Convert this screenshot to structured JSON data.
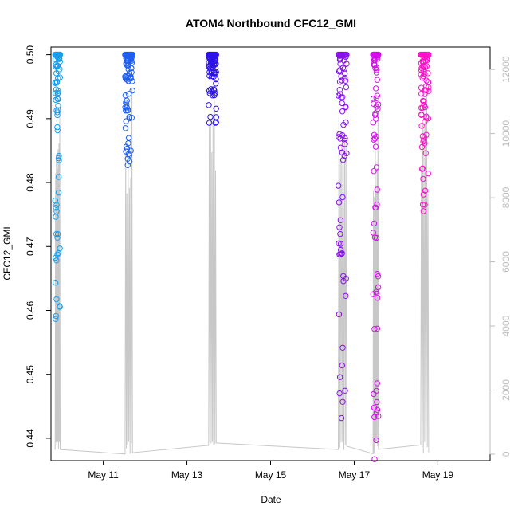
{
  "chart_data": {
    "type": "scatter",
    "title": "ATOM4 Northbound CFC12_GMI",
    "xlabel": "Date",
    "ylabel": "CFC12_GMI",
    "x_ticks": [
      "May 11",
      "May 13",
      "May 15",
      "May 17",
      "May 19"
    ],
    "y_ticks": [
      "0.44",
      "0.45",
      "0.46",
      "0.47",
      "0.48",
      "0.49",
      "0.50"
    ],
    "y2_ticks": [
      "0",
      "2000",
      "4000",
      "6000",
      "8000",
      "10000",
      "12000"
    ],
    "xlim": [
      9.75,
      20.25
    ],
    "ylim": [
      0.4365,
      0.5012
    ],
    "y2lim": [
      -200,
      12700
    ],
    "flights": [
      {
        "color": "#1A9EEC",
        "date_start": 9.85,
        "date_end": 9.97,
        "cfc12_min": 0.4578,
        "cfc12_max": 0.5
      },
      {
        "color": "#1E5FF0",
        "date_start": 11.52,
        "date_end": 11.7,
        "cfc12_min": 0.4815,
        "cfc12_max": 0.5
      },
      {
        "color": "#2C12E6",
        "date_start": 13.52,
        "date_end": 13.7,
        "cfc12_min": 0.4887,
        "cfc12_max": 0.5
      },
      {
        "color": "#8A11E8",
        "date_start": 16.62,
        "date_end": 16.82,
        "cfc12_min": 0.4402,
        "cfc12_max": 0.5
      },
      {
        "color": "#D411E8",
        "date_start": 17.45,
        "date_end": 17.58,
        "cfc12_min": 0.4363,
        "cfc12_max": 0.5
      },
      {
        "color": "#FA12C8",
        "date_start": 18.59,
        "date_end": 18.78,
        "cfc12_min": 0.4733,
        "cfc12_max": 0.5
      }
    ],
    "altitude_color": "#c8c8c8",
    "grid": false,
    "legend": "none"
  }
}
